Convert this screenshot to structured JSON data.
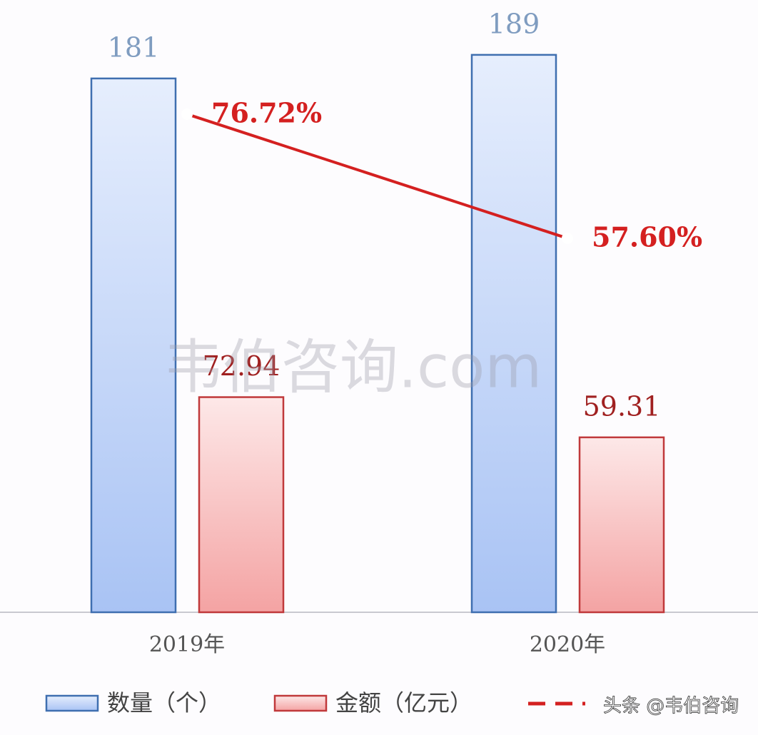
{
  "chart_data": {
    "type": "bar",
    "categories": [
      "2019年",
      "2020年"
    ],
    "series": [
      {
        "name": "数量（个）",
        "type": "bar",
        "color": "#3f6fb0",
        "label_color": "#7f9cc0",
        "values": [
          181,
          189
        ]
      },
      {
        "name": "金额（亿元）",
        "type": "bar",
        "color": "#c0393b",
        "label_color": "#a02020",
        "values": [
          72.94,
          59.31
        ]
      },
      {
        "type": "line",
        "axis": "y2",
        "color": "#d42020",
        "dashed_legend": true,
        "values": [
          76.72,
          57.6
        ],
        "value_labels": [
          "76.72%",
          "57.60%"
        ]
      }
    ],
    "ylim": [
      0,
      207.6
    ],
    "y2lim": [
      0,
      94.3
    ],
    "grid": false,
    "legend": "bottom",
    "watermarks": [
      "韦伯咨询.com",
      "头条 @韦伯咨询"
    ]
  }
}
